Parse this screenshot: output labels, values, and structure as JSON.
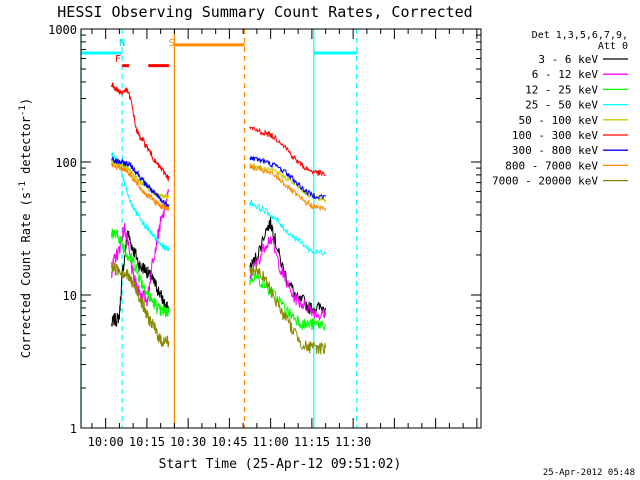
{
  "chart_data": {
    "type": "line",
    "title": "HESSI Observing Summary Count Rates, Corrected",
    "xlabel": "Start Time (25-Apr-12 09:51:02)",
    "ylabel": "Corrected Count Rate (s⁻¹ detector⁻¹)",
    "ylabel_parts": {
      "main": "Corrected Count Rate (s",
      "sup1": "-1",
      "mid": " detector",
      "sup2": "-1",
      "end": ")"
    },
    "yscale": "log",
    "ylim": [
      1,
      1000
    ],
    "xlim_min": [
      -8.97,
      136.5
    ],
    "x_ticks": [
      {
        "m": 0,
        "label": "10:00"
      },
      {
        "m": 15,
        "label": "10:15"
      },
      {
        "m": 30,
        "label": "10:30"
      },
      {
        "m": 45,
        "label": "10:45"
      },
      {
        "m": 60,
        "label": "11:00"
      },
      {
        "m": 75,
        "label": "11:15"
      },
      {
        "m": 90,
        "label": "11:30"
      }
    ],
    "y_ticks": [
      {
        "v": 1,
        "label": "1"
      },
      {
        "v": 10,
        "label": "10"
      },
      {
        "v": 100,
        "label": "100"
      },
      {
        "v": 1000,
        "label": "1000"
      }
    ],
    "legend": {
      "position": "right",
      "header": [
        "Det 1,3,5,6,7,9,",
        "Att 0"
      ],
      "entries": [
        {
          "label": "3 - 6 keV",
          "color": "#000000"
        },
        {
          "label": "6 - 12 keV",
          "color": "#ff00ff"
        },
        {
          "label": "12 - 25 keV",
          "color": "#00ff00"
        },
        {
          "label": "25 - 50 keV",
          "color": "#00ffff"
        },
        {
          "label": "50 - 100 keV",
          "color": "#cccc00"
        },
        {
          "label": "100 - 300 keV",
          "color": "#ff0000"
        },
        {
          "label": "300 - 800 keV",
          "color": "#0000ff"
        },
        {
          "label": "800 - 7000 keV",
          "color": "#ff8800"
        },
        {
          "label": "7000 - 20000 keV",
          "color": "#888800"
        }
      ]
    },
    "markers": [
      {
        "label": "N",
        "color": "#00cccc",
        "m": 6
      },
      {
        "label": "F",
        "color": "#ff0000",
        "m": 4.5
      },
      {
        "label": "S",
        "color": "#ff8800",
        "m": 24
      }
    ],
    "bars": [
      {
        "name": "night",
        "color": "#00ffff",
        "y": 660,
        "from": -8.97,
        "to": 6.0
      },
      {
        "name": "night",
        "color": "#00ffff",
        "y": 660,
        "from": 75.7,
        "to": 91.3
      },
      {
        "name": "flare",
        "color": "#ff0000",
        "y": 530,
        "from": 6.0,
        "to": 8.5
      },
      {
        "name": "flare",
        "color": "#ff0000",
        "y": 530,
        "from": 15.5,
        "to": 23.0
      },
      {
        "name": "saa",
        "color": "#ff8800",
        "y": 760,
        "from": 25.0,
        "to": 50.5
      }
    ],
    "vlines": [
      {
        "m": -8.97,
        "color": "#00ffff",
        "dash": false
      },
      {
        "m": 6.0,
        "color": "#00ffff",
        "dash": true
      },
      {
        "m": 25.0,
        "color": "#ff8800",
        "dash": false
      },
      {
        "m": 50.5,
        "color": "#ff8800",
        "dash": true
      },
      {
        "m": 75.7,
        "color": "#00ffff",
        "dash": false
      },
      {
        "m": 91.3,
        "color": "#00ffff",
        "dash": true
      }
    ],
    "series": [
      {
        "name": "3 - 6 keV",
        "color": "#000000",
        "segments": [
          {
            "x": [
              2.2,
              3,
              4,
              5,
              6,
              7,
              8,
              9,
              10,
              11,
              12,
              13,
              14,
              15,
              16,
              17,
              18,
              19,
              20,
              21,
              22,
              23
            ],
            "y": [
              6,
              6.5,
              6.5,
              7,
              14,
              20,
              30,
              25,
              22,
              20,
              17,
              16,
              16,
              15,
              14,
              13,
              12,
              11,
              10,
              9,
              8,
              8
            ]
          },
          {
            "x": [
              52.5,
              54,
              56,
              58,
              60,
              61,
              62,
              64,
              66,
              68,
              70,
              72,
              74,
              76,
              78,
              80
            ],
            "y": [
              16,
              18,
              22,
              30,
              35,
              30,
              24,
              17,
              13,
              11,
              9,
              9,
              8,
              8,
              8,
              8
            ]
          }
        ]
      },
      {
        "name": "6 - 12 keV",
        "color": "#ff00ff",
        "segments": [
          {
            "x": [
              2.2,
              3,
              4,
              5,
              6,
              7,
              8,
              9,
              10,
              11,
              12,
              13,
              14,
              15,
              16,
              17,
              18,
              19,
              20,
              21,
              22,
              23
            ],
            "y": [
              15,
              18,
              20,
              22,
              28,
              32,
              25,
              18,
              14,
              12,
              11,
              10,
              10,
              9,
              12,
              18,
              22,
              28,
              35,
              40,
              50,
              60
            ]
          },
          {
            "x": [
              52.5,
              54,
              56,
              58,
              60,
              62,
              64,
              66,
              68,
              70,
              72,
              74,
              76,
              78,
              80
            ],
            "y": [
              14,
              16,
              19,
              24,
              27,
              20,
              15,
              12,
              10,
              9,
              8.5,
              8,
              7.5,
              7,
              7
            ]
          }
        ]
      },
      {
        "name": "12 - 25 keV",
        "color": "#00ff00",
        "segments": [
          {
            "x": [
              2.2,
              3,
              4,
              5,
              6,
              7,
              8,
              9,
              10,
              11,
              12,
              13,
              14,
              15,
              16,
              17,
              18,
              19,
              20,
              21,
              22,
              23
            ],
            "y": [
              30,
              29,
              28,
              27,
              24,
              22,
              20,
              19,
              18,
              16,
              14,
              12.5,
              11.5,
              10.5,
              9.5,
              9,
              8.5,
              8,
              7.5,
              7.5,
              7.5,
              7.5
            ]
          },
          {
            "x": [
              52.5,
              54,
              56,
              58,
              60,
              62,
              64,
              66,
              68,
              70,
              72,
              74,
              76,
              78,
              80
            ],
            "y": [
              13,
              14,
              13,
              12,
              10.5,
              9.5,
              8.5,
              7.5,
              7,
              6.5,
              6,
              6,
              6,
              6,
              6
            ]
          }
        ]
      },
      {
        "name": "25 - 50 keV",
        "color": "#00ffff",
        "segments": [
          {
            "x": [
              2.2,
              3,
              4,
              5,
              6,
              7,
              8,
              9,
              10,
              11,
              12,
              13,
              14,
              15,
              16,
              17,
              18,
              19,
              20,
              21,
              22,
              23
            ],
            "y": [
              115,
              110,
              105,
              92,
              80,
              68,
              58,
              50,
              46,
              42,
              40,
              37,
              34,
              32,
              30,
              28,
              27,
              25,
              24,
              23,
              22.5,
              22
            ]
          },
          {
            "x": [
              52.5,
              54,
              56,
              58,
              60,
              62,
              64,
              66,
              68,
              70,
              72,
              74,
              76,
              78,
              80
            ],
            "y": [
              50,
              48,
              45,
              43,
              40,
              37,
              33,
              30,
              28,
              26,
              24,
              22,
              21,
              21,
              21
            ]
          }
        ]
      },
      {
        "name": "50 - 100 keV",
        "color": "#cccc00",
        "segments": [
          {
            "x": [
              2.2,
              3,
              4,
              5,
              6,
              7,
              8,
              9,
              10,
              11,
              12,
              13,
              14,
              15,
              16,
              17,
              18,
              19,
              20,
              21,
              22,
              23
            ],
            "y": [
              100,
              98,
              97,
              96,
              95,
              93,
              90,
              85,
              80,
              75,
              72,
              70,
              68,
              65,
              62,
              60,
              58,
              56,
              55,
              55,
              55,
              55
            ]
          },
          {
            "x": [
              52.5,
              54,
              56,
              58,
              60,
              62,
              64,
              66,
              68,
              70,
              72,
              74,
              76,
              78,
              80
            ],
            "y": [
              95,
              93,
              90,
              88,
              86,
              83,
              80,
              75,
              70,
              65,
              60,
              57,
              55,
              53,
              52
            ]
          }
        ]
      },
      {
        "name": "100 - 300 keV",
        "color": "#ff0000",
        "segments": [
          {
            "x": [
              2.2,
              3,
              4,
              5,
              6,
              7,
              8,
              9,
              10,
              11,
              12,
              13,
              14,
              15,
              16,
              17,
              18,
              19,
              20,
              21,
              22,
              23
            ],
            "y": [
              380,
              370,
              350,
              340,
              330,
              350,
              340,
              300,
              240,
              180,
              160,
              150,
              140,
              130,
              120,
              110,
              100,
              95,
              90,
              85,
              80,
              75
            ]
          },
          {
            "x": [
              52.5,
              54,
              56,
              58,
              60,
              62,
              64,
              66,
              68,
              70,
              72,
              74,
              76,
              78,
              80
            ],
            "y": [
              180,
              175,
              170,
              165,
              160,
              150,
              140,
              125,
              110,
              100,
              92,
              87,
              84,
              82,
              80
            ]
          }
        ]
      },
      {
        "name": "300 - 800 keV",
        "color": "#0000ff",
        "segments": [
          {
            "x": [
              2.2,
              3,
              4,
              5,
              6,
              7,
              8,
              9,
              10,
              11,
              12,
              13,
              14,
              15,
              16,
              17,
              18,
              19,
              20,
              21,
              22,
              23
            ],
            "y": [
              105,
              103,
              101,
              100,
              99,
              98,
              97,
              95,
              90,
              85,
              80,
              75,
              70,
              67,
              64,
              60,
              57,
              55,
              52,
              50,
              48,
              48
            ]
          },
          {
            "x": [
              52.5,
              54,
              56,
              58,
              60,
              62,
              64,
              66,
              68,
              70,
              72,
              74,
              76,
              78,
              80
            ],
            "y": [
              108,
              106,
              104,
              100,
              97,
              93,
              88,
              82,
              75,
              68,
              62,
              58,
              56,
              55,
              55
            ]
          }
        ]
      },
      {
        "name": "800 - 7000 keV",
        "color": "#ff8800",
        "segments": [
          {
            "x": [
              2.2,
              3,
              4,
              5,
              6,
              7,
              8,
              9,
              10,
              11,
              12,
              13,
              14,
              15,
              16,
              17,
              18,
              19,
              20,
              21,
              22,
              23
            ],
            "y": [
              95,
              93,
              92,
              91,
              90,
              88,
              85,
              80,
              75,
              70,
              66,
              62,
              59,
              57,
              55,
              53,
              50,
              49,
              47,
              46,
              45,
              45
            ]
          },
          {
            "x": [
              52.5,
              54,
              56,
              58,
              60,
              62,
              64,
              66,
              68,
              70,
              72,
              74,
              76,
              78,
              80
            ],
            "y": [
              92,
              90,
              88,
              85,
              82,
              78,
              72,
              66,
              60,
              55,
              51,
              48,
              46,
              45,
              45
            ]
          }
        ]
      },
      {
        "name": "7000 - 20000 keV",
        "color": "#888800",
        "segments": [
          {
            "x": [
              2.2,
              3,
              4,
              5,
              6,
              7,
              8,
              9,
              10,
              11,
              12,
              13,
              14,
              15,
              16,
              17,
              18,
              19,
              20,
              21,
              22,
              23
            ],
            "y": [
              16,
              16,
              15.5,
              15.5,
              15,
              14.5,
              14,
              13,
              12,
              11,
              10,
              9,
              8,
              7,
              6.5,
              6,
              5.5,
              5,
              4.5,
              4.5,
              4.5,
              4.5
            ]
          },
          {
            "x": [
              52.5,
              54,
              56,
              58,
              60,
              62,
              64,
              66,
              68,
              70,
              72,
              74,
              76,
              78,
              80
            ],
            "y": [
              15,
              15.5,
              14.5,
              13,
              11,
              9,
              7.5,
              6.5,
              5.5,
              4.8,
              4.2,
              4,
              4,
              4,
              4
            ]
          }
        ]
      }
    ]
  },
  "footer": {
    "timestamp": "25-Apr-2012 05:48"
  }
}
